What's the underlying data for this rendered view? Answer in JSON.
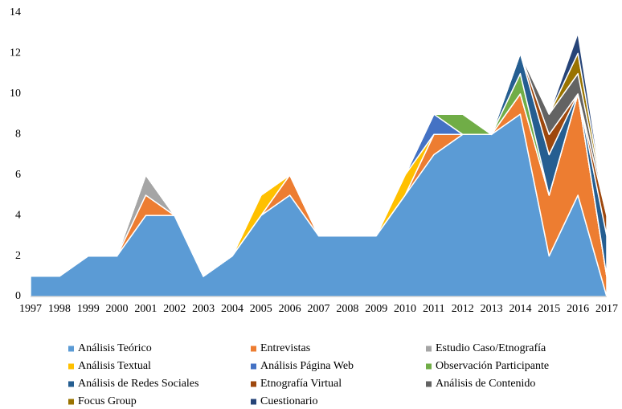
{
  "chart_data": {
    "type": "stacked_area",
    "categories": [
      "1997",
      "1998",
      "1999",
      "2000",
      "2001",
      "2002",
      "2003",
      "2004",
      "2005",
      "2006",
      "2007",
      "2008",
      "2009",
      "2010",
      "2011",
      "2012",
      "2013",
      "2014",
      "2015",
      "2016",
      "2017"
    ],
    "series": [
      {
        "name": "Análisis Teórico",
        "color": "#5b9bd5",
        "values": [
          1,
          1,
          2,
          2,
          4,
          4,
          1,
          2,
          4,
          5,
          3,
          3,
          3,
          5,
          7,
          8,
          8,
          9,
          2,
          5,
          0
        ]
      },
      {
        "name": "Entrevistas",
        "color": "#ed7d31",
        "values": [
          0,
          0,
          0,
          0,
          1,
          0,
          0,
          0,
          0,
          1,
          0,
          0,
          0,
          0,
          1,
          0,
          0,
          1,
          3,
          5,
          1
        ]
      },
      {
        "name": "Estudio Caso/Etnografía",
        "color": "#a5a5a5",
        "values": [
          0,
          0,
          0,
          0,
          1,
          0,
          0,
          0,
          0,
          0,
          0,
          0,
          0,
          0,
          0,
          0,
          0,
          0,
          0,
          0,
          0
        ]
      },
      {
        "name": "Análisis Textual",
        "color": "#ffc000",
        "values": [
          0,
          0,
          0,
          0,
          0,
          0,
          0,
          0,
          1,
          0,
          0,
          0,
          0,
          1,
          0,
          0,
          0,
          0,
          0,
          0,
          0
        ]
      },
      {
        "name": "Análisis Página Web",
        "color": "#4472c4",
        "values": [
          0,
          0,
          0,
          0,
          0,
          0,
          0,
          0,
          0,
          0,
          0,
          0,
          0,
          0,
          1,
          0,
          0,
          0,
          0,
          0,
          0
        ]
      },
      {
        "name": "Observación Participante",
        "color": "#70ad47",
        "values": [
          0,
          0,
          0,
          0,
          0,
          0,
          0,
          0,
          0,
          0,
          0,
          0,
          0,
          0,
          0,
          1,
          0,
          1,
          0,
          0,
          0
        ]
      },
      {
        "name": "Análisis de Redes Sociales",
        "color": "#255e91",
        "values": [
          0,
          0,
          0,
          0,
          0,
          0,
          0,
          0,
          0,
          0,
          0,
          0,
          0,
          0,
          0,
          0,
          0,
          1,
          2,
          0,
          2
        ]
      },
      {
        "name": "Etnografía Virtual",
        "color": "#9e480e",
        "values": [
          0,
          0,
          0,
          0,
          0,
          0,
          0,
          0,
          0,
          0,
          0,
          0,
          0,
          0,
          0,
          0,
          0,
          0,
          1,
          0,
          1
        ]
      },
      {
        "name": "Análisis de Contenido",
        "color": "#636363",
        "values": [
          0,
          0,
          0,
          0,
          0,
          0,
          0,
          0,
          0,
          0,
          0,
          0,
          0,
          0,
          0,
          0,
          0,
          0,
          1,
          1,
          0
        ]
      },
      {
        "name": "Focus Group",
        "color": "#997300",
        "values": [
          0,
          0,
          0,
          0,
          0,
          0,
          0,
          0,
          0,
          0,
          0,
          0,
          0,
          0,
          0,
          0,
          0,
          0,
          0,
          1,
          0
        ]
      },
      {
        "name": "Cuestionario",
        "color": "#264478",
        "values": [
          0,
          0,
          0,
          0,
          0,
          0,
          0,
          0,
          0,
          0,
          0,
          0,
          0,
          0,
          0,
          0,
          0,
          0,
          0,
          1,
          0
        ]
      }
    ],
    "ylim": [
      0,
      14
    ],
    "yticks": [
      0,
      2,
      4,
      6,
      8,
      10,
      12,
      14
    ],
    "grid": false,
    "legend": "bottom"
  }
}
